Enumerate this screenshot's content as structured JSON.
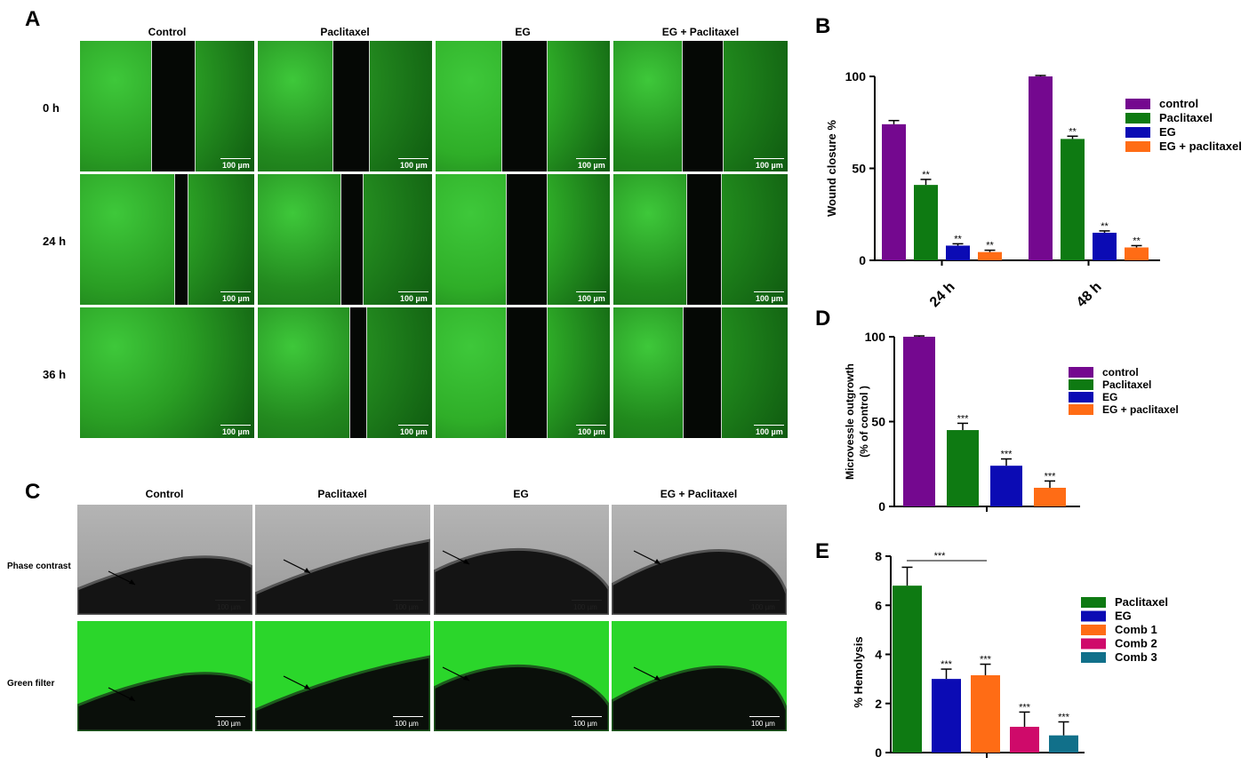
{
  "panel_letters": {
    "a": "A",
    "b": "B",
    "c": "C",
    "d": "D",
    "e": "E"
  },
  "panel_a": {
    "columns": [
      "Control",
      "Paclitaxel",
      "EG",
      "EG + Paclitaxel"
    ],
    "rows": [
      "0 h",
      "24 h",
      "36 h"
    ],
    "scale_label": "100 µm"
  },
  "panel_c": {
    "columns": [
      "Control",
      "Paclitaxel",
      "EG",
      "EG + Paclitaxel"
    ],
    "rows": [
      "Phase contrast",
      "Green filter"
    ],
    "scale_label": "100 µm"
  },
  "colors": {
    "purple": "#74088f",
    "green": "#0e7a12",
    "blue": "#0b0bb4",
    "orange": "#ff6c15",
    "magenta": "#cf0a6a",
    "teal": "#11708a",
    "fluor_green": "#2bd62b"
  },
  "chart_data": [
    {
      "id": "B",
      "type": "bar",
      "categories": [
        "24 h",
        "48 h"
      ],
      "series": [
        {
          "name": "control",
          "color": "#74088f",
          "values": [
            74,
            100
          ],
          "errors": [
            2,
            0.5
          ],
          "sig": [
            "",
            ""
          ]
        },
        {
          "name": "Paclitaxel",
          "color": "#0e7a12",
          "values": [
            41,
            66
          ],
          "errors": [
            3,
            1.5
          ],
          "sig": [
            "**",
            "**"
          ]
        },
        {
          "name": "EG",
          "color": "#0b0bb4",
          "values": [
            8,
            15
          ],
          "errors": [
            1,
            1
          ],
          "sig": [
            "**",
            "**"
          ]
        },
        {
          "name": "EG + paclitaxel",
          "color": "#ff6c15",
          "values": [
            4.5,
            7
          ],
          "errors": [
            1,
            1
          ],
          "sig": [
            "**",
            "**"
          ]
        }
      ],
      "xlabel": "",
      "ylabel": "Wound closure %",
      "ylim": [
        0,
        100
      ],
      "yticks": [
        0,
        50,
        100
      ],
      "legend": "right"
    },
    {
      "id": "D",
      "type": "bar",
      "categories": [
        "control",
        "Paclitaxel",
        "EG",
        "EG + paclitaxel"
      ],
      "values": [
        100,
        45,
        24,
        11
      ],
      "errors": [
        0.5,
        4,
        4,
        4
      ],
      "sig": [
        "",
        "***",
        "***",
        "***"
      ],
      "colors": [
        "#74088f",
        "#0e7a12",
        "#0b0bb4",
        "#ff6c15"
      ],
      "ylabel_lines": [
        "Microvessle outgrowth",
        "(% of control )"
      ],
      "ylim": [
        0,
        100
      ],
      "yticks": [
        0,
        50,
        100
      ],
      "legend": "right"
    },
    {
      "id": "E",
      "type": "bar",
      "categories": [
        "Paclitaxel",
        "EG",
        "Comb 1",
        "Comb 2",
        "Comb 3"
      ],
      "values": [
        6.8,
        3.0,
        3.15,
        1.05,
        0.7
      ],
      "errors": [
        0.75,
        0.4,
        0.45,
        0.6,
        0.55
      ],
      "sig": [
        "",
        "***",
        "***",
        "***",
        "***"
      ],
      "colors": [
        "#0e7a12",
        "#0b0bb4",
        "#ff6c15",
        "#cf0a6a",
        "#11708a"
      ],
      "bracket_label": "***",
      "ylabel": "% Hemolysis",
      "ylim": [
        0,
        8
      ],
      "yticks": [
        0,
        2,
        4,
        6,
        8
      ],
      "legend": "right"
    }
  ]
}
